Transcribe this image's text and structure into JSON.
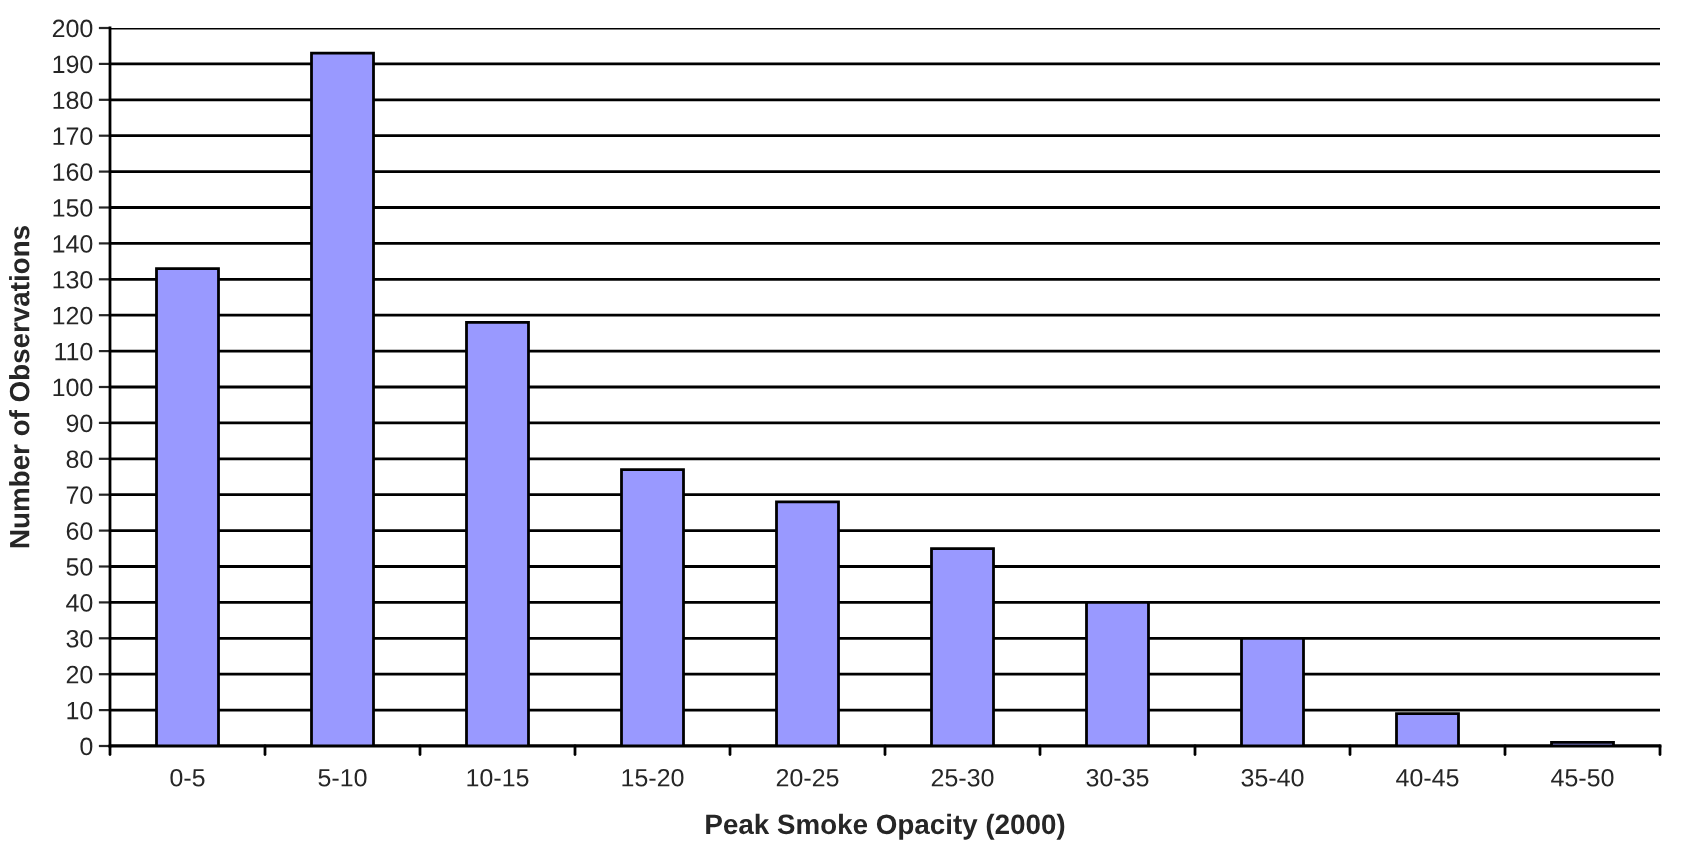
{
  "chart_data": {
    "type": "bar",
    "xlabel": "Peak Smoke Opacity (2000)",
    "ylabel": "Number of Observations",
    "categories": [
      "0-5",
      "5-10",
      "10-15",
      "15-20",
      "20-25",
      "25-30",
      "30-35",
      "35-40",
      "40-45",
      "45-50"
    ],
    "values": [
      133,
      193,
      118,
      77,
      68,
      55,
      40,
      30,
      9,
      1
    ],
    "color": "#9999ff",
    "ylim": [
      0,
      200
    ],
    "yticks": [
      0,
      10,
      20,
      30,
      40,
      50,
      60,
      70,
      80,
      90,
      100,
      110,
      120,
      130,
      140,
      150,
      160,
      170,
      180,
      190,
      200
    ],
    "grid": "y",
    "legend": false
  }
}
